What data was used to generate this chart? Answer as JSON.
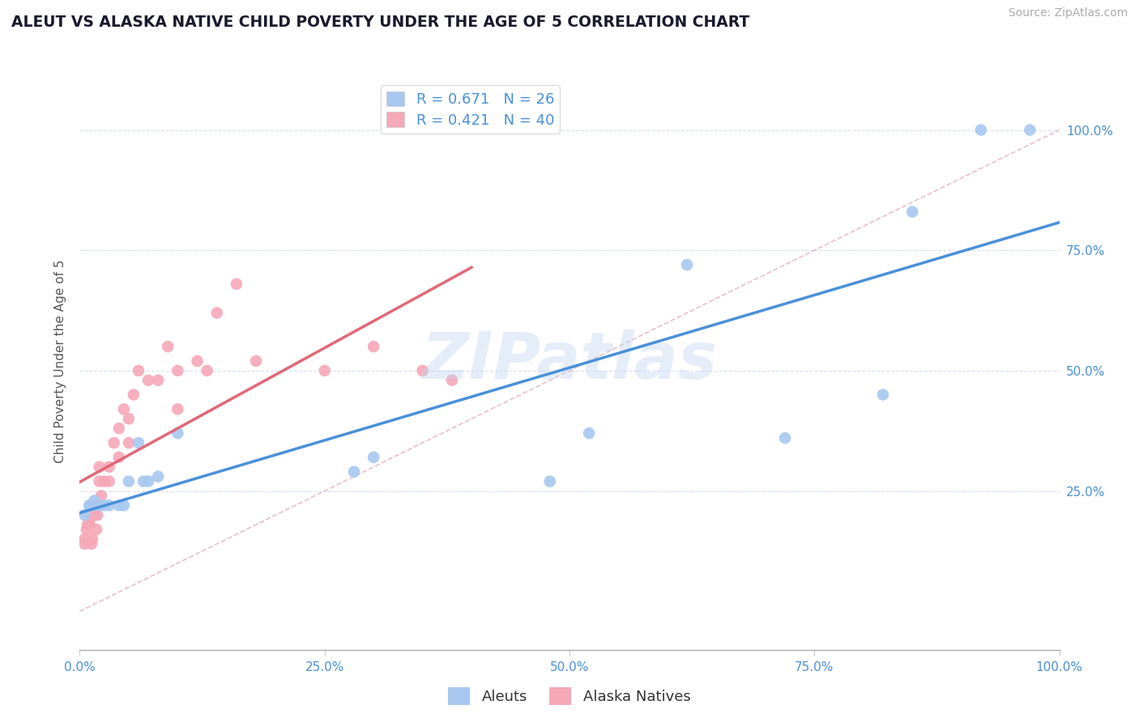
{
  "title": "ALEUT VS ALASKA NATIVE CHILD POVERTY UNDER THE AGE OF 5 CORRELATION CHART",
  "source": "Source: ZipAtlas.com",
  "ylabel": "Child Poverty Under the Age of 5",
  "watermark": "ZIPatlas",
  "aleuts_R": 0.671,
  "aleuts_N": 26,
  "alaska_native_R": 0.421,
  "alaska_native_N": 40,
  "aleuts_color": "#a8c8f0",
  "alaska_native_color": "#f5a8b8",
  "aleuts_line_color": "#4a90d9",
  "alaska_native_line_color": "#e06878",
  "diagonal_color": "#e0b0c0",
  "xmin": 0.0,
  "xmax": 1.0,
  "ymin": -0.08,
  "ymax": 1.12,
  "xticks": [
    0.0,
    0.25,
    0.5,
    0.75,
    1.0
  ],
  "xtick_labels": [
    "0.0%",
    "25.0%",
    "50.0%",
    "75.0%",
    "100.0%"
  ],
  "ytick_labels": [
    "25.0%",
    "50.0%",
    "75.0%",
    "100.0%"
  ],
  "yticks": [
    0.25,
    0.5,
    0.75,
    1.0
  ],
  "aleuts_x": [
    0.005,
    0.01,
    0.01,
    0.015,
    0.015,
    0.02,
    0.025,
    0.03,
    0.04,
    0.045,
    0.05,
    0.06,
    0.065,
    0.07,
    0.08,
    0.1,
    0.28,
    0.3,
    0.48,
    0.52,
    0.62,
    0.72,
    0.82,
    0.85,
    0.92,
    0.97
  ],
  "aleuts_y": [
    0.2,
    0.22,
    0.22,
    0.22,
    0.23,
    0.22,
    0.22,
    0.22,
    0.22,
    0.22,
    0.27,
    0.35,
    0.27,
    0.27,
    0.28,
    0.37,
    0.29,
    0.32,
    0.27,
    0.37,
    0.72,
    0.36,
    0.45,
    0.83,
    1.0,
    1.0
  ],
  "alaska_native_x": [
    0.005,
    0.005,
    0.007,
    0.008,
    0.01,
    0.01,
    0.012,
    0.013,
    0.015,
    0.015,
    0.017,
    0.018,
    0.02,
    0.02,
    0.022,
    0.025,
    0.03,
    0.03,
    0.035,
    0.04,
    0.04,
    0.045,
    0.05,
    0.05,
    0.055,
    0.06,
    0.07,
    0.08,
    0.09,
    0.1,
    0.1,
    0.12,
    0.13,
    0.14,
    0.16,
    0.18,
    0.25,
    0.3,
    0.35,
    0.38
  ],
  "alaska_native_y": [
    0.14,
    0.15,
    0.17,
    0.18,
    0.18,
    0.19,
    0.14,
    0.15,
    0.2,
    0.22,
    0.17,
    0.2,
    0.27,
    0.3,
    0.24,
    0.27,
    0.27,
    0.3,
    0.35,
    0.32,
    0.38,
    0.42,
    0.35,
    0.4,
    0.45,
    0.5,
    0.48,
    0.48,
    0.55,
    0.42,
    0.5,
    0.52,
    0.5,
    0.62,
    0.68,
    0.52,
    0.5,
    0.55,
    0.5,
    0.48
  ],
  "grid_color": "#d8dff0",
  "marker_size": 110,
  "bg_color": "#ffffff",
  "title_fontsize": 13.5,
  "tick_fontsize": 11,
  "ylabel_fontsize": 11,
  "legend_fontsize": 13,
  "source_fontsize": 10
}
